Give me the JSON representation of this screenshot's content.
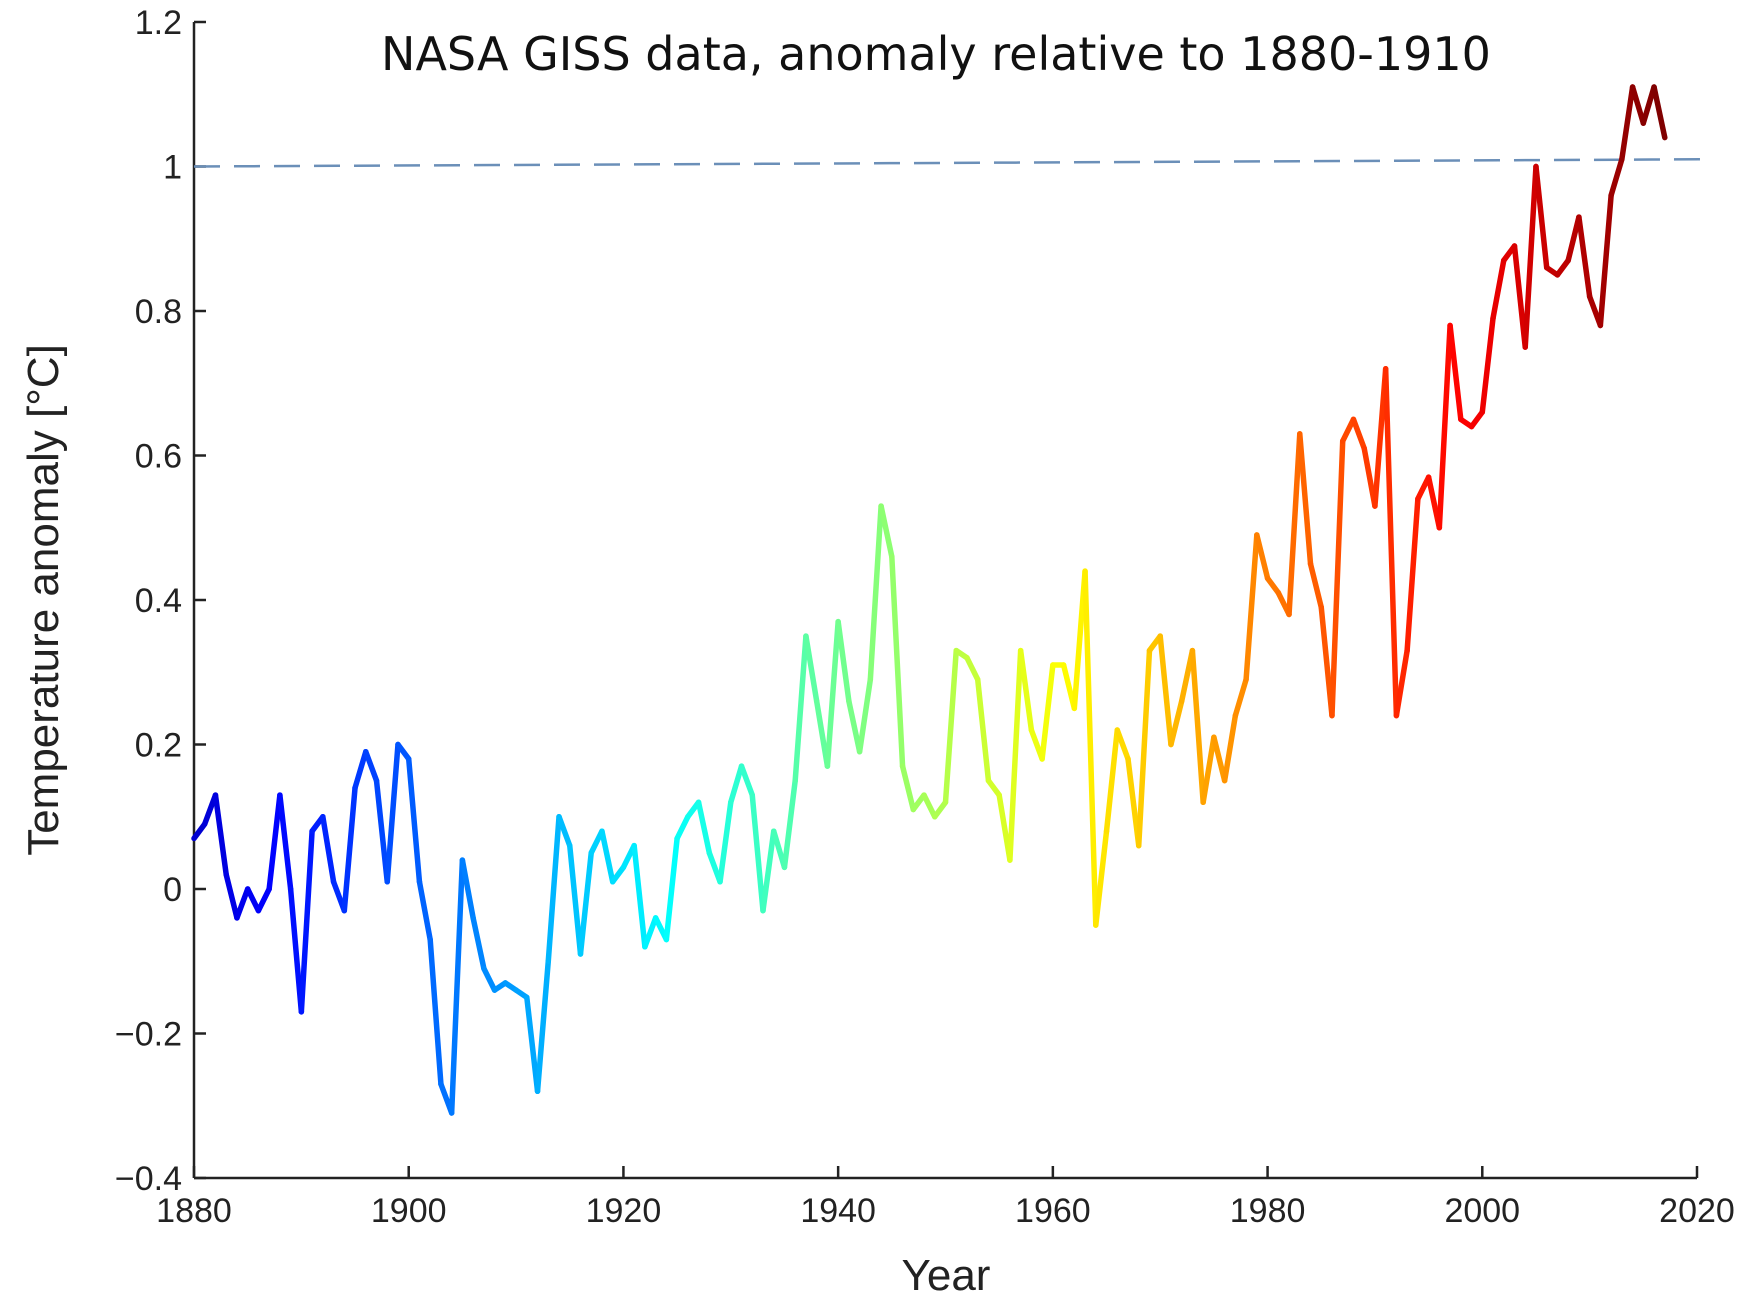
{
  "chart_data": {
    "type": "line",
    "subtitle": "NASA GISS data, anomaly relative to 1880-1910",
    "xlabel": "Year",
    "ylabel": "Temperature anomaly [°C]",
    "xlim": [
      1880,
      2020
    ],
    "ylim": [
      -0.4,
      1.2
    ],
    "x_ticks": [
      1880,
      1900,
      1920,
      1940,
      1960,
      1980,
      2000,
      2020
    ],
    "y_ticks": [
      -0.4,
      -0.2,
      0,
      0.2,
      0.4,
      0.6,
      0.8,
      1,
      1.2
    ],
    "y_tick_labels": [
      "−0.4",
      "−0.2",
      "0",
      "0.2",
      "0.4",
      "0.6",
      "0.8",
      "1",
      "1.2"
    ],
    "grid": false,
    "colormap": "jet",
    "colors": {
      "reference_line": "#6b8fb8",
      "axis": "#222222"
    },
    "reference_line": {
      "x": [
        1880,
        2021
      ],
      "y": [
        1.0,
        1.01
      ]
    },
    "series": [
      {
        "x": [
          1880,
          1881,
          1882,
          1883,
          1884,
          1885,
          1886,
          1887,
          1888,
          1889,
          1890,
          1891,
          1892,
          1893,
          1894,
          1895,
          1896,
          1897,
          1898,
          1899,
          1900,
          1901,
          1902,
          1903,
          1904,
          1905,
          1906,
          1907,
          1908,
          1909,
          1910,
          1911,
          1912,
          1913,
          1914,
          1915,
          1916,
          1917,
          1918,
          1919,
          1920,
          1921,
          1922,
          1923,
          1924,
          1925,
          1926,
          1927,
          1928,
          1929,
          1930,
          1931,
          1932,
          1933,
          1934,
          1935,
          1936,
          1937,
          1938,
          1939,
          1940,
          1941,
          1942,
          1943,
          1944,
          1945,
          1946,
          1947,
          1948,
          1949,
          1950,
          1951,
          1952,
          1953,
          1954,
          1955,
          1956,
          1957,
          1958,
          1959,
          1960,
          1961,
          1962,
          1963,
          1964,
          1965,
          1966,
          1967,
          1968,
          1969,
          1970,
          1971,
          1972,
          1973,
          1974,
          1975,
          1976,
          1977,
          1978,
          1979,
          1980,
          1981,
          1982,
          1983,
          1984,
          1985,
          1986,
          1987,
          1988,
          1989,
          1990,
          1991,
          1992,
          1993,
          1994,
          1995,
          1996,
          1997,
          1998,
          1999,
          2000,
          2001,
          2002,
          2003,
          2004,
          2005,
          2006,
          2007,
          2008,
          2009,
          2010,
          2011,
          2012,
          2013,
          2014,
          2015,
          2016,
          2017
        ],
        "values": [
          0.07,
          0.09,
          0.13,
          0.02,
          -0.04,
          0.0,
          -0.03,
          0.0,
          0.13,
          0.0,
          -0.17,
          0.08,
          0.1,
          0.01,
          -0.03,
          0.14,
          0.19,
          0.15,
          0.01,
          0.2,
          0.18,
          0.01,
          -0.07,
          -0.27,
          -0.31,
          0.04,
          -0.04,
          -0.11,
          -0.14,
          -0.13,
          -0.14,
          -0.15,
          -0.28,
          -0.1,
          0.1,
          0.06,
          -0.09,
          0.05,
          0.08,
          0.01,
          0.03,
          0.06,
          -0.08,
          -0.04,
          -0.07,
          0.07,
          0.1,
          0.12,
          0.05,
          0.01,
          0.12,
          0.17,
          0.13,
          -0.03,
          0.08,
          0.03,
          0.15,
          0.35,
          0.26,
          0.17,
          0.37,
          0.26,
          0.19,
          0.29,
          0.53,
          0.46,
          0.17,
          0.11,
          0.13,
          0.1,
          0.12,
          0.33,
          0.32,
          0.29,
          0.15,
          0.13,
          0.04,
          0.33,
          0.22,
          0.18,
          0.31,
          0.31,
          0.25,
          0.44,
          -0.05,
          0.08,
          0.22,
          0.18,
          0.06,
          0.33,
          0.35,
          0.2,
          0.26,
          0.33,
          0.12,
          0.21,
          0.15,
          0.24,
          0.29,
          0.49,
          0.43,
          0.41,
          0.38,
          0.63,
          0.45,
          0.39,
          0.24,
          0.62,
          0.65,
          0.61,
          0.53,
          0.72,
          0.24,
          0.33,
          0.54,
          0.57,
          0.5,
          0.78,
          0.65,
          0.64,
          0.66,
          0.79,
          0.87,
          0.89,
          0.75,
          1.0,
          0.86,
          0.85,
          0.87,
          0.93,
          0.82,
          0.78,
          0.96,
          1.01,
          1.11,
          1.06,
          1.11,
          1.04
        ]
      }
    ]
  }
}
